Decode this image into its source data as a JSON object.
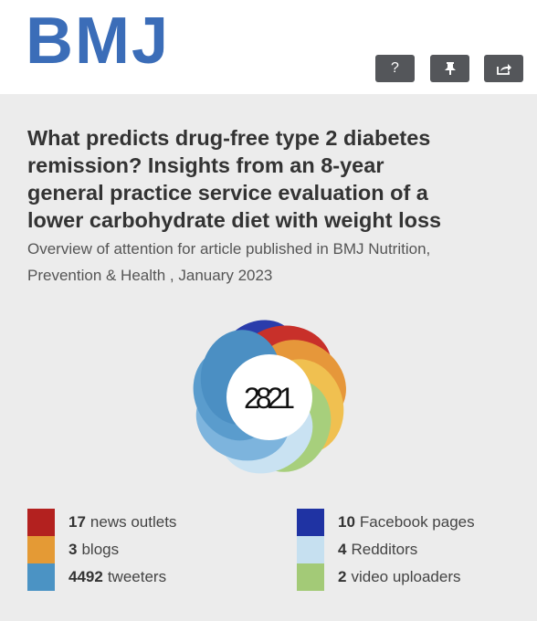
{
  "header": {
    "logo": "BMJ",
    "buttons": [
      "?"
    ]
  },
  "article": {
    "title_lines": [
      "What predicts drug-free type 2 diabetes",
      "remission? Insights from an 8-year",
      "general practice service evaluation of a",
      "lower carbohydrate diet with weight loss"
    ],
    "subtitle_lines": [
      "Overview of attention for article published in BMJ Nutrition,",
      "Prevention & Health , January 2023"
    ],
    "score": 2821
  },
  "sources": [
    {
      "count": 17,
      "label": "news outlets",
      "color": "#b3211f"
    },
    {
      "count": 3,
      "label": "blogs",
      "color": "#e49a35"
    },
    {
      "count": 4492,
      "label": "tweeters",
      "color": "#4b93c4"
    },
    {
      "count": 10,
      "label": "Facebook pages",
      "color": "#1f33a3"
    },
    {
      "count": 4,
      "label": "Redditors",
      "color": "#c6e0f0"
    },
    {
      "count": 2,
      "label": "video uploaders",
      "color": "#a3ca77"
    }
  ]
}
